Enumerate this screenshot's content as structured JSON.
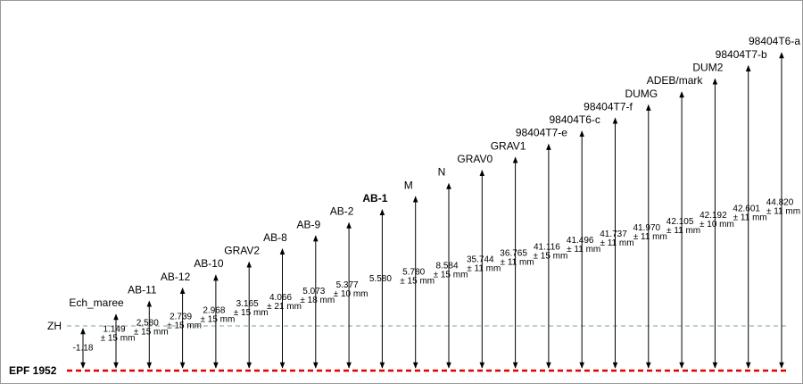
{
  "reference": "EPF 1952",
  "zh": {
    "label": "ZH",
    "value": "-1.18"
  },
  "points": [
    {
      "label": "Ech_maree",
      "value": "1.149",
      "uncertainty": "± 15 mm"
    },
    {
      "label": "AB-11",
      "value": "2.580",
      "uncertainty": "± 15 mm"
    },
    {
      "label": "AB-12",
      "value": "2.739",
      "uncertainty": "± 15 mm"
    },
    {
      "label": "AB-10",
      "value": "2.968",
      "uncertainty": "± 15 mm"
    },
    {
      "label": "GRAV2",
      "value": "3.165",
      "uncertainty": "± 15 mm"
    },
    {
      "label": "AB-8",
      "value": "4.066",
      "uncertainty": "± 21 mm"
    },
    {
      "label": "AB-9",
      "value": "5.073",
      "uncertainty": "± 18 mm"
    },
    {
      "label": "AB-2",
      "value": "5.377",
      "uncertainty": "± 10 mm"
    },
    {
      "label": "AB-1",
      "value": "5.580"
    },
    {
      "label": "M",
      "value": "5.780",
      "uncertainty": "± 15 mm"
    },
    {
      "label": "N",
      "value": "8.584",
      "uncertainty": "± 15 mm"
    },
    {
      "label": "GRAV0",
      "value": "35.744",
      "uncertainty": "± 11 mm"
    },
    {
      "label": "GRAV1",
      "value": "36.765",
      "uncertainty": "± 11 mm"
    },
    {
      "label": "98404T7-e",
      "value": "41.116",
      "uncertainty": "± 15 mm"
    },
    {
      "label": "98404T6-c",
      "value": "41.496",
      "uncertainty": "± 11 mm"
    },
    {
      "label": "98404T7-f",
      "value": "41.737",
      "uncertainty": "± 11 mm"
    },
    {
      "label": "DUMG",
      "value": "41.970",
      "uncertainty": "± 11 mm"
    },
    {
      "label": "ADEB/mark",
      "value": "42.105",
      "uncertainty": "± 11 mm"
    },
    {
      "label": "DUM2",
      "value": "42.192",
      "uncertainty": "± 10 mm"
    },
    {
      "label": "98404T7-b",
      "value": "42.601",
      "uncertainty": "± 11 mm"
    },
    {
      "label": "98404T6-a",
      "value": "44.820",
      "uncertainty": "± 11 mm"
    }
  ]
}
